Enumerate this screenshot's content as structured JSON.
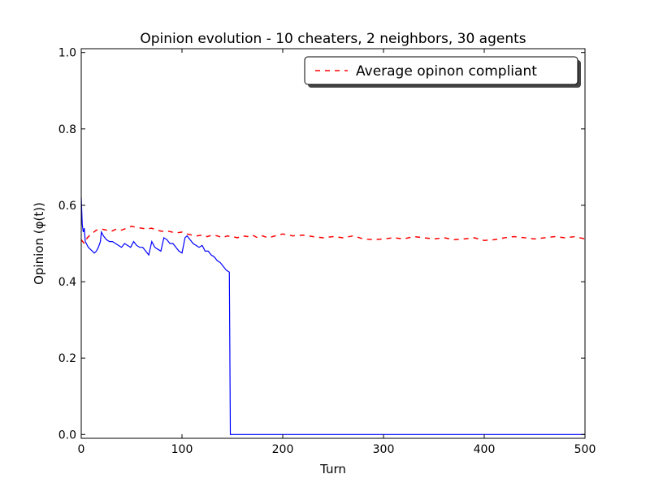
{
  "chart_data": {
    "type": "line",
    "title": "Opinion evolution - 10 cheaters, 2 neighbors, 30 agents",
    "xlabel": "Turn",
    "ylabel": "Opinion (φ(t))",
    "xlim": [
      0,
      500
    ],
    "ylim": [
      -0.01,
      1.01
    ],
    "xticks": [
      0,
      100,
      200,
      300,
      400,
      500
    ],
    "yticks": [
      0.0,
      0.2,
      0.4,
      0.6,
      0.8,
      1.0
    ],
    "xtick_labels": [
      "0",
      "100",
      "200",
      "300",
      "400",
      "500"
    ],
    "ytick_labels": [
      "0.0",
      "0.2",
      "0.4",
      "0.6",
      "0.8",
      "1.0"
    ],
    "grid": false,
    "legend_position": "top-right",
    "series": [
      {
        "name": "Average opinon compliant",
        "color": "#ff0000",
        "style": "dashed",
        "x": [
          0,
          3,
          6,
          10,
          15,
          20,
          25,
          30,
          35,
          40,
          45,
          50,
          55,
          60,
          65,
          70,
          75,
          80,
          85,
          90,
          95,
          100,
          105,
          110,
          115,
          120,
          125,
          130,
          135,
          140,
          145,
          150,
          155,
          160,
          165,
          170,
          175,
          180,
          185,
          190,
          195,
          200,
          210,
          220,
          230,
          240,
          250,
          260,
          270,
          280,
          290,
          300,
          310,
          320,
          330,
          340,
          350,
          360,
          370,
          380,
          390,
          400,
          410,
          420,
          430,
          440,
          450,
          460,
          470,
          480,
          490,
          500
        ],
        "values": [
          0.51,
          0.5,
          0.515,
          0.525,
          0.535,
          0.538,
          0.535,
          0.532,
          0.538,
          0.535,
          0.54,
          0.545,
          0.542,
          0.54,
          0.538,
          0.54,
          0.535,
          0.532,
          0.533,
          0.53,
          0.528,
          0.53,
          0.525,
          0.522,
          0.52,
          0.522,
          0.518,
          0.522,
          0.52,
          0.515,
          0.52,
          0.518,
          0.515,
          0.52,
          0.518,
          0.522,
          0.515,
          0.52,
          0.515,
          0.518,
          0.522,
          0.525,
          0.52,
          0.522,
          0.518,
          0.515,
          0.518,
          0.515,
          0.52,
          0.512,
          0.51,
          0.512,
          0.515,
          0.512,
          0.518,
          0.515,
          0.512,
          0.515,
          0.51,
          0.512,
          0.515,
          0.508,
          0.51,
          0.515,
          0.518,
          0.515,
          0.512,
          0.515,
          0.518,
          0.515,
          0.518,
          0.512
        ]
      },
      {
        "name": "",
        "color": "#0000ff",
        "style": "solid",
        "x": [
          0,
          1,
          2,
          3,
          4,
          5,
          7,
          9,
          11,
          13,
          15,
          17,
          19,
          20,
          22,
          25,
          28,
          31,
          34,
          37,
          40,
          43,
          46,
          49,
          52,
          55,
          58,
          61,
          64,
          67,
          70,
          73,
          76,
          79,
          82,
          85,
          88,
          91,
          94,
          97,
          100,
          103,
          105,
          108,
          111,
          114,
          117,
          120,
          123,
          126,
          129,
          132,
          135,
          138,
          141,
          144,
          147,
          148,
          160,
          200,
          250,
          300,
          350,
          400,
          450,
          500
        ],
        "values": [
          0.62,
          0.55,
          0.53,
          0.54,
          0.505,
          0.5,
          0.49,
          0.485,
          0.48,
          0.475,
          0.48,
          0.49,
          0.505,
          0.53,
          0.52,
          0.51,
          0.505,
          0.505,
          0.5,
          0.495,
          0.49,
          0.5,
          0.495,
          0.49,
          0.505,
          0.495,
          0.49,
          0.49,
          0.48,
          0.47,
          0.505,
          0.49,
          0.485,
          0.48,
          0.515,
          0.51,
          0.5,
          0.5,
          0.49,
          0.48,
          0.475,
          0.515,
          0.52,
          0.51,
          0.5,
          0.495,
          0.49,
          0.495,
          0.48,
          0.48,
          0.47,
          0.465,
          0.455,
          0.45,
          0.44,
          0.43,
          0.425,
          0.0,
          0.0,
          0.0,
          0.0,
          0.0,
          0.0,
          0.0,
          0.0,
          0.0
        ]
      }
    ]
  },
  "legend": {
    "label": "Average opinon compliant"
  }
}
